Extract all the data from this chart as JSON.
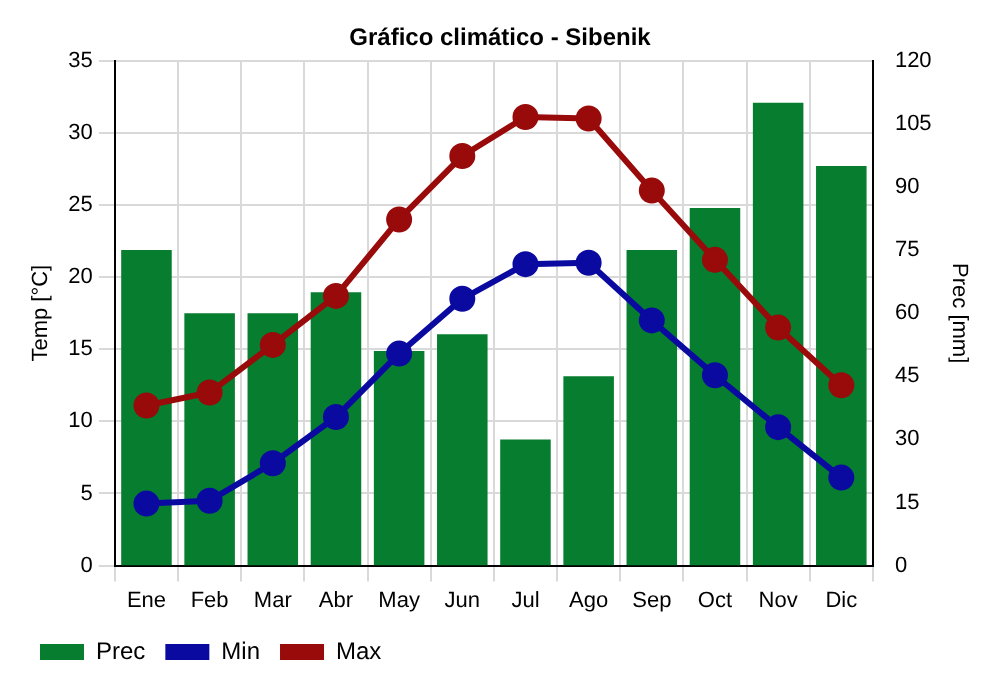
{
  "chart_data": {
    "type": "bar",
    "title": "Gráfico climático - Sibenik",
    "ylabel": "Temp [°C]",
    "y2label": "Prec [mm]",
    "categories": [
      "Ene",
      "Feb",
      "Mar",
      "Abr",
      "May",
      "Jun",
      "Jul",
      "Ago",
      "Sep",
      "Oct",
      "Nov",
      "Dic"
    ],
    "series": [
      {
        "name": "Prec",
        "axis": "y2",
        "color": "#067d2f",
        "values": [
          75,
          60,
          60,
          65,
          51,
          55,
          30,
          45,
          75,
          85,
          110,
          95
        ]
      },
      {
        "name": "Min",
        "type": "line",
        "color": "#0a0aa0",
        "values": [
          4.3,
          4.5,
          7.1,
          10.3,
          14.7,
          18.5,
          20.9,
          21.0,
          17.0,
          13.2,
          9.6,
          6.1
        ]
      },
      {
        "name": "Max",
        "type": "line",
        "color": "#990a0a",
        "values": [
          11.1,
          12.0,
          15.3,
          18.7,
          24.0,
          28.4,
          31.1,
          31.0,
          26.0,
          21.2,
          16.5,
          12.5
        ]
      }
    ],
    "ylim": [
      0,
      35
    ],
    "yticks": [
      0,
      5,
      10,
      15,
      20,
      25,
      30,
      35
    ],
    "y2lim": [
      0,
      120
    ],
    "y2ticks": [
      0,
      15,
      30,
      45,
      60,
      75,
      90,
      105,
      120
    ],
    "grid": true,
    "legend": "bottom",
    "marker": "circle",
    "line_style": "solid"
  }
}
